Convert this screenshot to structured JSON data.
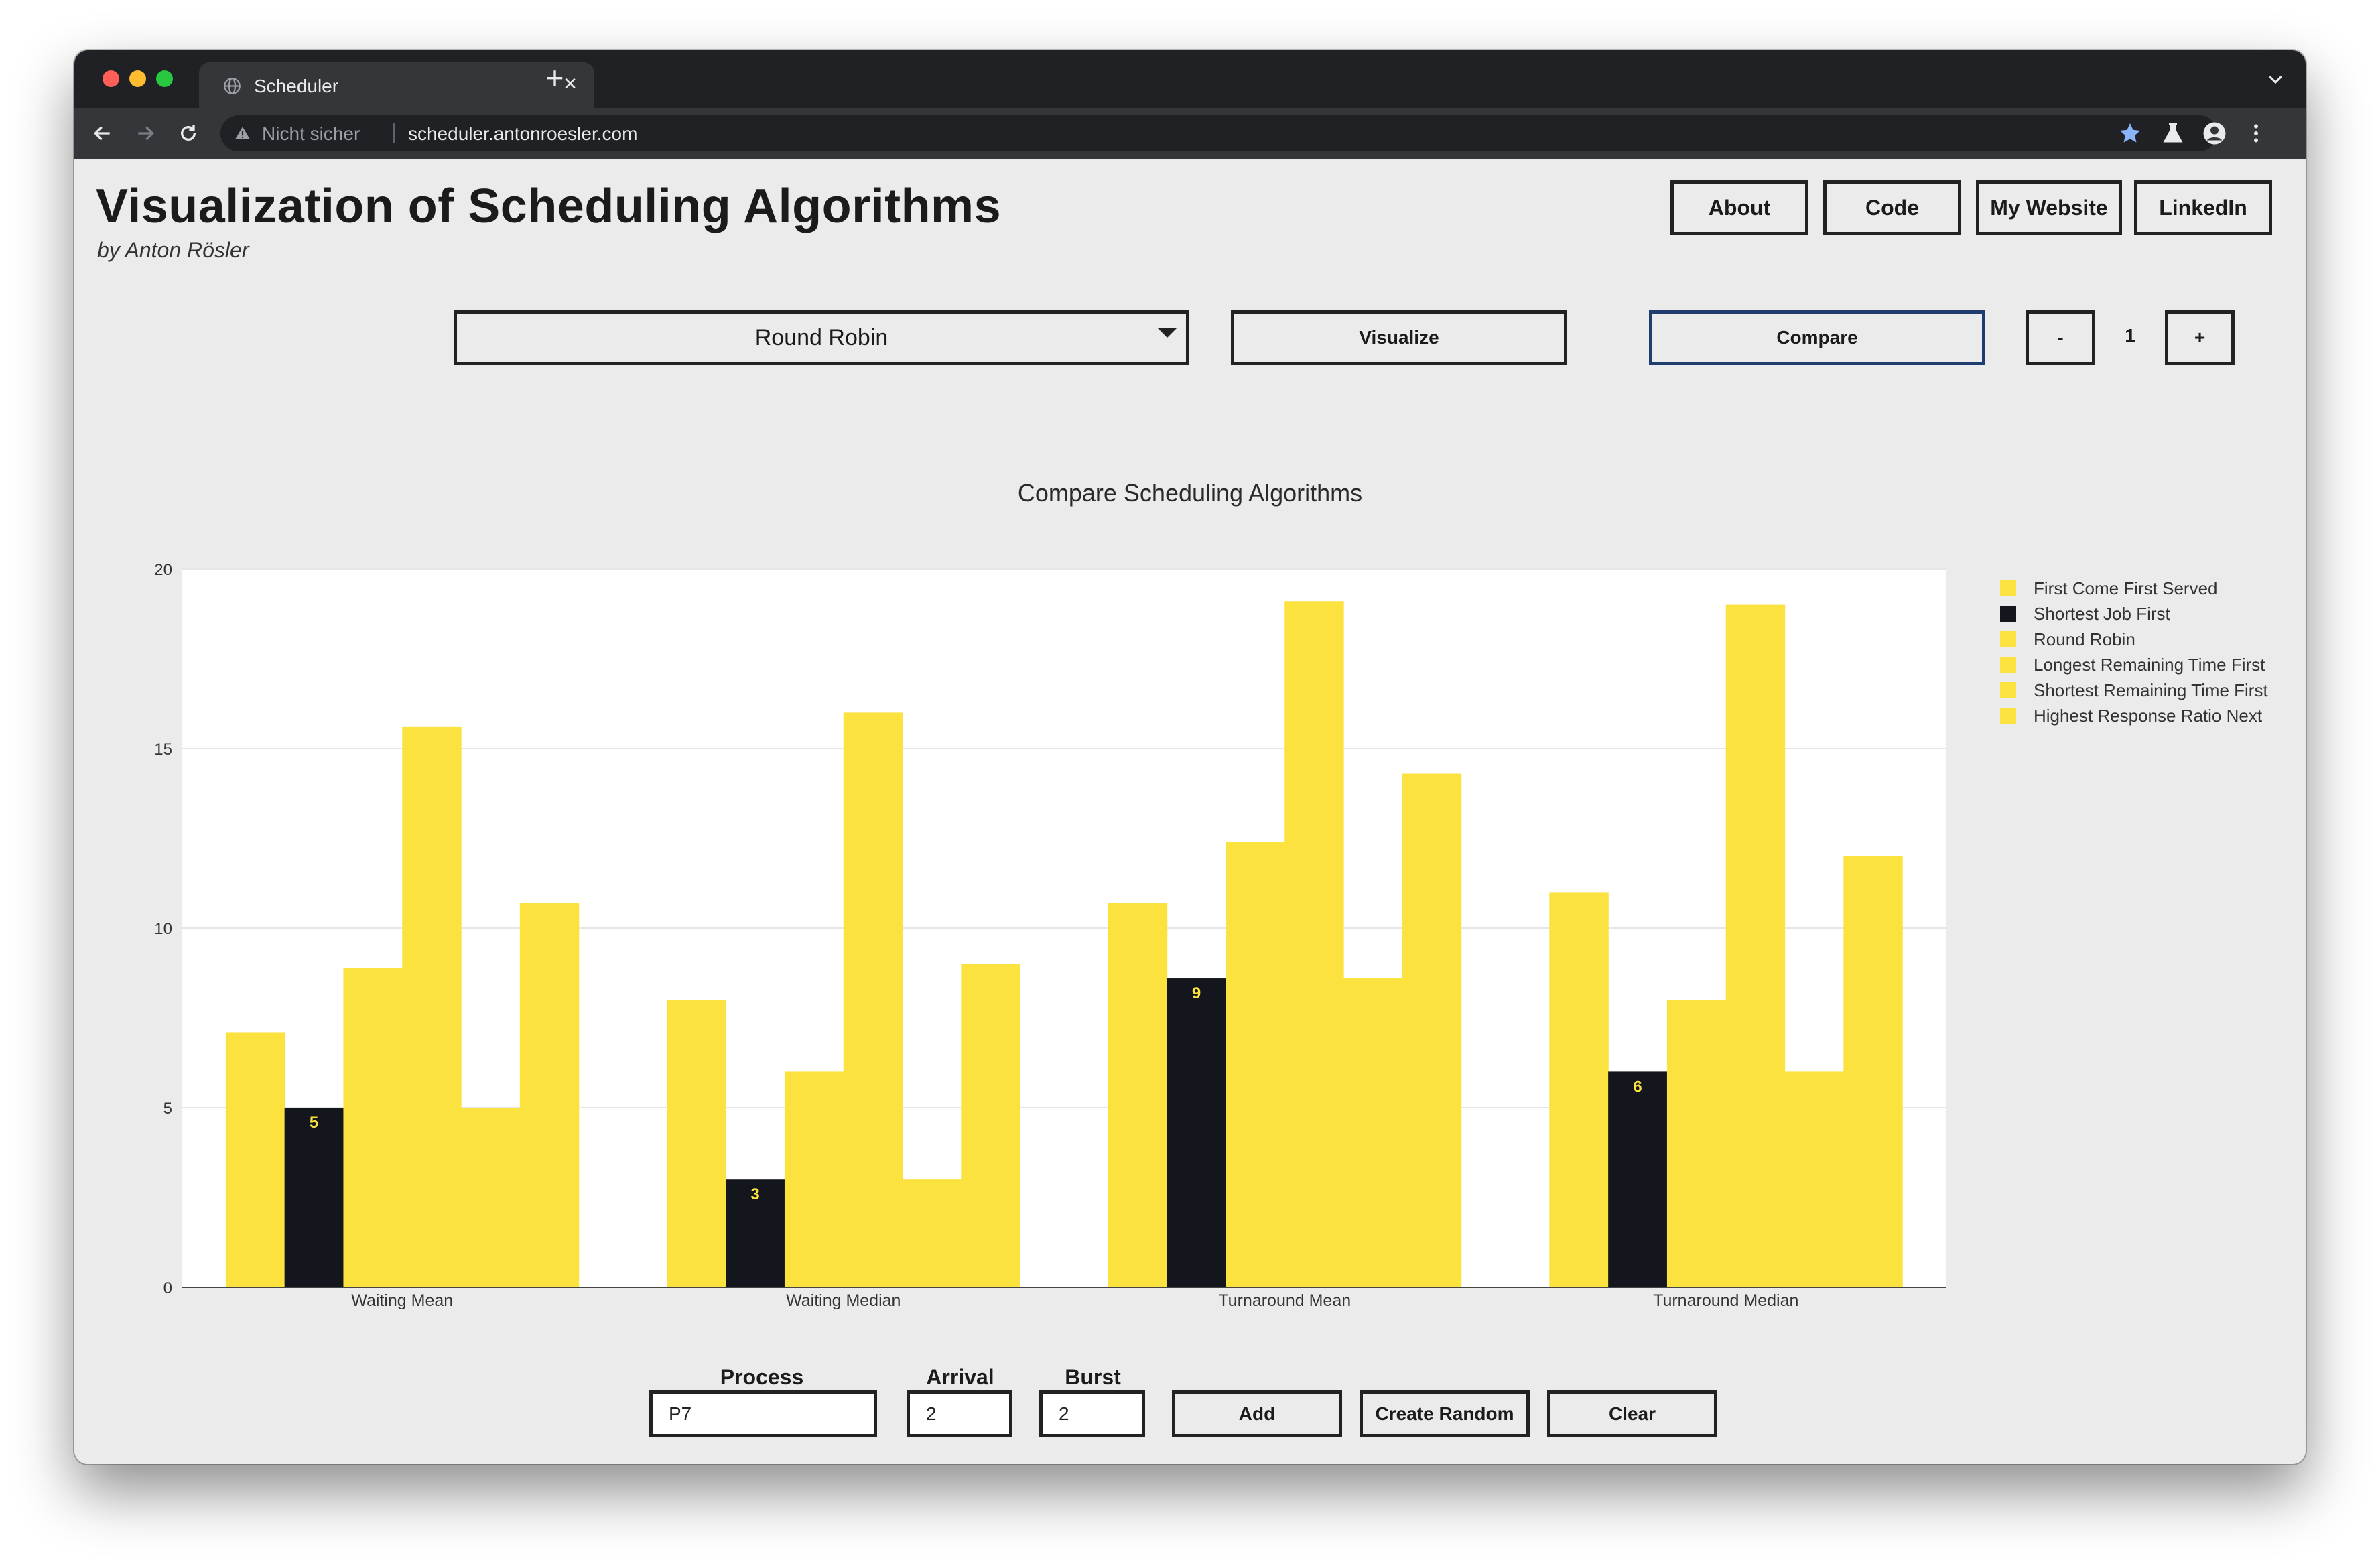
{
  "browser": {
    "tab_title": "Scheduler",
    "tab_close": "×",
    "new_tab": "+",
    "security_label": "Nicht sicher",
    "url": "scheduler.antonroesler.com",
    "traffic_lights": [
      "#ff5f57",
      "#febc2e",
      "#28c840"
    ]
  },
  "header": {
    "title": "Visualization of Scheduling Algorithms",
    "subtitle": "by Anton Rösler",
    "nav": [
      "About",
      "Code",
      "My Website",
      "LinkedIn"
    ]
  },
  "controls": {
    "algorithm_select": "Round Robin",
    "visualize_label": "Visualize",
    "compare_label": "Compare",
    "decrement_label": "-",
    "quantity": "1",
    "increment_label": "+"
  },
  "chart_data": {
    "type": "bar",
    "title": "Compare Scheduling Algorithms",
    "xlabel": "",
    "ylabel": "",
    "ylim": [
      0,
      20
    ],
    "yticks": [
      0,
      5,
      10,
      15,
      20
    ],
    "grid": true,
    "legend_position": "right",
    "categories": [
      "Waiting Mean",
      "Waiting Median",
      "Turnaround Mean",
      "Turnaround Median"
    ],
    "highlight_series": "Shortest Job First",
    "colors": {
      "default": "#fbe23e",
      "highlight": "#13171d",
      "label": "#fbe23e"
    },
    "series": [
      {
        "name": "First Come First Served",
        "values": [
          7.1,
          8,
          10.7,
          11
        ]
      },
      {
        "name": "Shortest Job First",
        "values": [
          5,
          3,
          8.6,
          6
        ],
        "labels": [
          "5",
          "3",
          "9",
          "6"
        ]
      },
      {
        "name": "Round Robin",
        "values": [
          8.9,
          6,
          12.4,
          8
        ]
      },
      {
        "name": "Longest Remaining Time First",
        "values": [
          15.6,
          16,
          19.1,
          19
        ]
      },
      {
        "name": "Shortest Remaining Time First",
        "values": [
          5,
          3,
          8.6,
          6
        ]
      },
      {
        "name": "Highest Response Ratio Next",
        "values": [
          10.7,
          9,
          14.3,
          12
        ]
      }
    ]
  },
  "form": {
    "process_label": "Process",
    "process_value": "P7",
    "arrival_label": "Arrival",
    "arrival_value": "2",
    "burst_label": "Burst",
    "burst_value": "2",
    "add_label": "Add",
    "random_label": "Create Random",
    "clear_label": "Clear"
  }
}
